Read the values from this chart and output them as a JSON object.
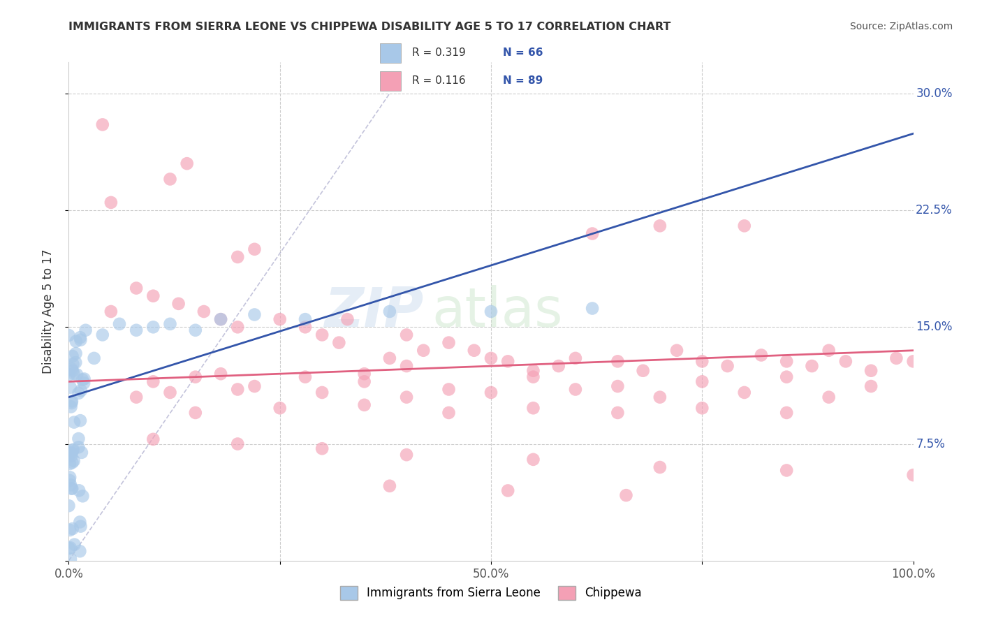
{
  "title": "IMMIGRANTS FROM SIERRA LEONE VS CHIPPEWA DISABILITY AGE 5 TO 17 CORRELATION CHART",
  "source": "Source: ZipAtlas.com",
  "ylabel": "Disability Age 5 to 17",
  "xlim": [
    0.0,
    1.0
  ],
  "ylim": [
    0.0,
    0.32
  ],
  "color_blue": "#A8C8E8",
  "color_pink": "#F4A0B5",
  "trend_blue": "#3355AA",
  "trend_pink": "#E06080",
  "watermark_zip": "ZIP",
  "watermark_atlas": "atlas",
  "background": "#FFFFFF",
  "legend_r1": "R = 0.319",
  "legend_n1": "N = 66",
  "legend_r2": "R = 0.116",
  "legend_n2": "N = 89"
}
